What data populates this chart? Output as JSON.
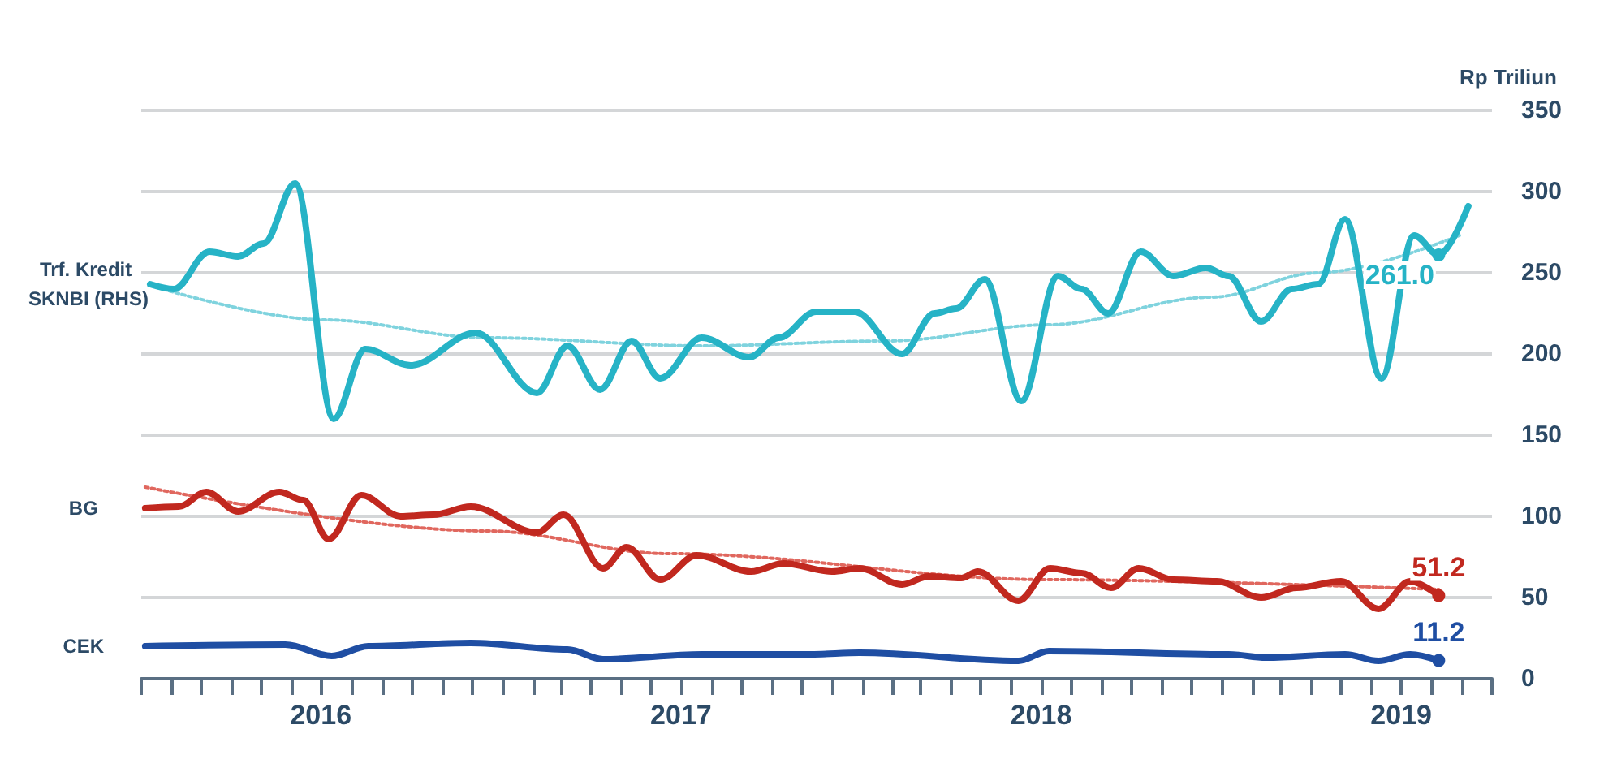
{
  "chart_data": {
    "type": "line",
    "ylabel": "Rp Triliun",
    "xlim": [
      "2016-01",
      "2019-10"
    ],
    "xticks": [
      {
        "value": "2016-01",
        "label": null
      },
      {
        "value": "2016-02",
        "label": null
      },
      {
        "value": "2016-03",
        "label": null
      },
      {
        "value": "2016-04",
        "label": null
      },
      {
        "value": "2016-05",
        "label": null
      },
      {
        "value": "2016-06",
        "label": null
      },
      {
        "value": "2016-07",
        "label": "2016"
      },
      {
        "value": "2016-08",
        "label": null
      },
      {
        "value": "2016-09",
        "label": null
      },
      {
        "value": "2016-10",
        "label": null
      },
      {
        "value": "2016-11",
        "label": null
      },
      {
        "value": "2016-12",
        "label": null
      },
      {
        "value": "2017-01",
        "label": null
      },
      {
        "value": "2017-02",
        "label": null
      },
      {
        "value": "2017-03",
        "label": null
      },
      {
        "value": "2017-04",
        "label": null
      },
      {
        "value": "2017-05",
        "label": null
      },
      {
        "value": "2017-06",
        "label": null
      },
      {
        "value": "2017-07",
        "label": "2017"
      },
      {
        "value": "2017-08",
        "label": null
      },
      {
        "value": "2017-09",
        "label": null
      },
      {
        "value": "2017-10",
        "label": null
      },
      {
        "value": "2017-11",
        "label": null
      },
      {
        "value": "2017-12",
        "label": null
      },
      {
        "value": "2018-01",
        "label": null
      },
      {
        "value": "2018-02",
        "label": null
      },
      {
        "value": "2018-03",
        "label": null
      },
      {
        "value": "2018-04",
        "label": null
      },
      {
        "value": "2018-05",
        "label": null
      },
      {
        "value": "2018-06",
        "label": null
      },
      {
        "value": "2018-07",
        "label": "2018"
      },
      {
        "value": "2018-08",
        "label": null
      },
      {
        "value": "2018-09",
        "label": null
      },
      {
        "value": "2018-10",
        "label": null
      },
      {
        "value": "2018-11",
        "label": null
      },
      {
        "value": "2018-12",
        "label": null
      },
      {
        "value": "2019-01",
        "label": null
      },
      {
        "value": "2019-02",
        "label": null
      },
      {
        "value": "2019-03",
        "label": null
      },
      {
        "value": "2019-04",
        "label": null
      },
      {
        "value": "2019-05",
        "label": null
      },
      {
        "value": "2019-06",
        "label": null
      },
      {
        "value": "2019-07",
        "label": "2019"
      },
      {
        "value": "2019-08",
        "label": null
      },
      {
        "value": "2019-09",
        "label": null
      },
      {
        "value": "2019-10",
        "label": null
      }
    ],
    "ylim": [
      0,
      350
    ],
    "yticks": [
      0,
      50,
      100,
      150,
      200,
      250,
      300,
      350
    ],
    "grid": "y",
    "legend": false,
    "marker": "none",
    "series": [
      {
        "name": "Trf. Kredit SKNBI (RHS)",
        "color": "#26b3c6",
        "x": [
          "2016-01-10",
          "2016-02-03",
          "2016-03-10",
          "2016-04-08",
          "2016-05-04",
          "2016-06-05",
          "2016-07-14",
          "2016-08-15",
          "2016-09-30",
          "2016-12-05",
          "2017-02-05",
          "2017-03-08",
          "2017-04-10",
          "2017-05-12",
          "2017-06-10",
          "2017-07-22",
          "2017-09-08",
          "2017-10-08",
          "2017-11-15",
          "2017-12-24",
          "2018-02-10",
          "2018-03-15",
          "2018-04-06",
          "2018-05-05",
          "2018-06-11",
          "2018-07-18",
          "2018-08-11",
          "2018-09-07",
          "2018-10-10",
          "2018-11-12",
          "2018-12-15",
          "2019-01-07",
          "2019-02-09",
          "2019-03-12",
          "2019-04-08",
          "2019-05-05",
          "2019-06-11",
          "2019-07-14",
          "2019-08-08",
          "2019-09-07"
        ],
        "values": [
          243,
          240,
          263,
          260,
          268,
          305,
          160,
          203,
          193,
          213,
          176,
          205,
          178,
          208,
          185,
          210,
          198,
          210,
          226,
          226,
          200,
          225,
          228,
          246,
          171,
          248,
          240,
          225,
          263,
          248,
          253,
          248,
          220,
          240,
          243,
          283,
          185,
          273,
          261.0,
          291
        ],
        "value_labels": [
          null,
          null,
          null,
          null,
          null,
          null,
          null,
          null,
          null,
          null,
          null,
          null,
          null,
          null,
          null,
          null,
          null,
          null,
          null,
          null,
          null,
          null,
          null,
          null,
          null,
          null,
          null,
          null,
          null,
          null,
          null,
          null,
          null,
          null,
          null,
          null,
          null,
          null,
          "261.0",
          null
        ]
      },
      {
        "name": "BG",
        "color": "#c1281f",
        "x": [
          "2016-01-05",
          "2016-02-08",
          "2016-03-07",
          "2016-04-08",
          "2016-05-20",
          "2016-06-13",
          "2016-07-09",
          "2016-08-11",
          "2016-09-20",
          "2016-10-23",
          "2016-11-30",
          "2017-02-05",
          "2017-03-04",
          "2017-04-13",
          "2017-05-07",
          "2017-06-10",
          "2017-07-17",
          "2017-09-10",
          "2017-10-13",
          "2017-12-01",
          "2017-12-29",
          "2018-02-10",
          "2018-03-09",
          "2018-04-11",
          "2018-04-28",
          "2018-06-08",
          "2018-07-10",
          "2018-08-11",
          "2018-09-10",
          "2018-10-08",
          "2018-11-12",
          "2018-12-26",
          "2019-02-09",
          "2019-03-17",
          "2019-05-01",
          "2019-06-08",
          "2019-07-10",
          "2019-08-08"
        ],
        "values": [
          105,
          106,
          115,
          103,
          115,
          110,
          86,
          113,
          100,
          101,
          106,
          90,
          101,
          68,
          81,
          61,
          76,
          66,
          71,
          66,
          68,
          58,
          63,
          62,
          66,
          48,
          68,
          65,
          56,
          68,
          61,
          60,
          50,
          56,
          60,
          43,
          60,
          51.2
        ],
        "value_labels": [
          null,
          null,
          null,
          null,
          null,
          null,
          null,
          null,
          null,
          null,
          null,
          null,
          null,
          null,
          null,
          null,
          null,
          null,
          null,
          null,
          null,
          null,
          null,
          null,
          null,
          null,
          null,
          null,
          null,
          null,
          null,
          null,
          null,
          null,
          null,
          null,
          null,
          "51.2"
        ]
      },
      {
        "name": "CEK",
        "color": "#1f4ea3",
        "x": [
          "2016-01-05",
          "2016-05-26",
          "2016-07-12",
          "2016-08-18",
          "2016-11-30",
          "2017-03-08",
          "2017-04-13",
          "2017-07-22",
          "2017-11-10",
          "2017-12-29",
          "2018-06-08",
          "2018-07-09",
          "2019-01-07",
          "2019-02-14",
          "2019-05-05",
          "2019-06-08",
          "2019-07-10",
          "2019-08-08"
        ],
        "values": [
          20,
          21,
          14,
          20,
          22,
          18,
          12,
          15,
          15,
          16,
          11,
          17,
          15,
          13,
          15,
          11,
          15,
          11.2
        ],
        "value_labels": [
          null,
          null,
          null,
          null,
          null,
          null,
          null,
          null,
          null,
          null,
          null,
          null,
          null,
          null,
          null,
          null,
          null,
          "11.2"
        ]
      },
      {
        "color": "#7fd3de",
        "line_style": "dotted",
        "x": [
          "2016-01-17",
          "2016-07-04",
          "2016-12-16",
          "2017-07-22",
          "2018-01-26",
          "2018-07-09",
          "2018-12-21",
          "2019-04-08",
          "2019-08-29"
        ],
        "values": [
          241,
          221,
          210,
          205,
          208,
          218,
          235,
          250,
          273
        ]
      },
      {
        "color": "#e0675e",
        "line_style": "dotted",
        "x": [
          "2016-01-05",
          "2016-12-16",
          "2017-06-19",
          "2018-07-09",
          "2019-08-08"
        ],
        "values": [
          118,
          91,
          77,
          61,
          55
        ]
      }
    ]
  }
}
